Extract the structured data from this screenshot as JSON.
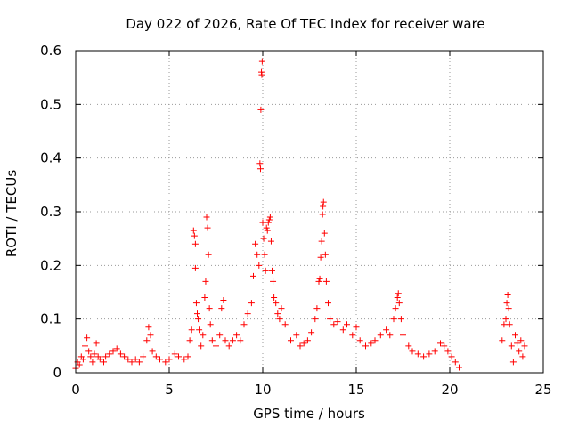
{
  "chart_data": {
    "type": "scatter",
    "title": "Day 022 of 2026, Rate Of TEC Index for receiver ware",
    "xlabel": "GPS time / hours",
    "ylabel": "ROTI / TECUs",
    "xlim": [
      0,
      25
    ],
    "ylim": [
      0,
      0.6
    ],
    "x_ticks": [
      "0",
      "5",
      "10",
      "15",
      "20",
      "25"
    ],
    "y_ticks": [
      "0",
      "0.1",
      "0.2",
      "0.3",
      "0.4",
      "0.5",
      "0.6"
    ],
    "grid": true,
    "marker": "plus",
    "series_color": "#ff0000",
    "series": [
      {
        "points": [
          [
            0.0,
            0.008
          ],
          [
            0.1,
            0.02
          ],
          [
            0.2,
            0.015
          ],
          [
            0.3,
            0.03
          ],
          [
            0.4,
            0.025
          ],
          [
            0.5,
            0.05
          ],
          [
            0.6,
            0.065
          ],
          [
            0.7,
            0.04
          ],
          [
            0.8,
            0.03
          ],
          [
            0.9,
            0.02
          ],
          [
            1.0,
            0.035
          ],
          [
            1.1,
            0.055
          ],
          [
            1.2,
            0.03
          ],
          [
            1.3,
            0.025
          ],
          [
            1.5,
            0.02
          ],
          [
            1.6,
            0.03
          ],
          [
            1.8,
            0.035
          ],
          [
            2.0,
            0.04
          ],
          [
            2.2,
            0.045
          ],
          [
            2.4,
            0.035
          ],
          [
            2.6,
            0.03
          ],
          [
            2.8,
            0.025
          ],
          [
            3.0,
            0.02
          ],
          [
            3.2,
            0.025
          ],
          [
            3.4,
            0.02
          ],
          [
            3.6,
            0.03
          ],
          [
            3.8,
            0.06
          ],
          [
            3.9,
            0.085
          ],
          [
            4.0,
            0.07
          ],
          [
            4.1,
            0.04
          ],
          [
            4.3,
            0.03
          ],
          [
            4.5,
            0.025
          ],
          [
            4.8,
            0.02
          ],
          [
            5.0,
            0.025
          ],
          [
            5.3,
            0.035
          ],
          [
            5.5,
            0.03
          ],
          [
            5.8,
            0.025
          ],
          [
            6.0,
            0.03
          ],
          [
            6.1,
            0.06
          ],
          [
            6.2,
            0.08
          ],
          [
            6.3,
            0.265
          ],
          [
            6.35,
            0.255
          ],
          [
            6.4,
            0.24
          ],
          [
            6.4,
            0.195
          ],
          [
            6.45,
            0.13
          ],
          [
            6.5,
            0.11
          ],
          [
            6.55,
            0.1
          ],
          [
            6.6,
            0.08
          ],
          [
            6.7,
            0.05
          ],
          [
            6.8,
            0.07
          ],
          [
            6.9,
            0.14
          ],
          [
            6.95,
            0.17
          ],
          [
            7.0,
            0.29
          ],
          [
            7.05,
            0.27
          ],
          [
            7.1,
            0.22
          ],
          [
            7.15,
            0.12
          ],
          [
            7.2,
            0.09
          ],
          [
            7.3,
            0.06
          ],
          [
            7.5,
            0.05
          ],
          [
            7.7,
            0.07
          ],
          [
            7.8,
            0.12
          ],
          [
            7.9,
            0.135
          ],
          [
            8.0,
            0.06
          ],
          [
            8.2,
            0.05
          ],
          [
            8.4,
            0.06
          ],
          [
            8.6,
            0.07
          ],
          [
            8.8,
            0.06
          ],
          [
            9.0,
            0.09
          ],
          [
            9.2,
            0.11
          ],
          [
            9.4,
            0.13
          ],
          [
            9.5,
            0.18
          ],
          [
            9.6,
            0.24
          ],
          [
            9.7,
            0.22
          ],
          [
            9.8,
            0.2
          ],
          [
            9.85,
            0.39
          ],
          [
            9.88,
            0.38
          ],
          [
            9.9,
            0.49
          ],
          [
            9.93,
            0.56
          ],
          [
            9.95,
            0.555
          ],
          [
            9.97,
            0.58
          ],
          [
            10.0,
            0.28
          ],
          [
            10.05,
            0.25
          ],
          [
            10.1,
            0.22
          ],
          [
            10.15,
            0.19
          ],
          [
            10.2,
            0.27
          ],
          [
            10.25,
            0.265
          ],
          [
            10.3,
            0.28
          ],
          [
            10.35,
            0.285
          ],
          [
            10.4,
            0.29
          ],
          [
            10.45,
            0.245
          ],
          [
            10.5,
            0.19
          ],
          [
            10.55,
            0.17
          ],
          [
            10.6,
            0.14
          ],
          [
            10.7,
            0.13
          ],
          [
            10.8,
            0.11
          ],
          [
            10.9,
            0.1
          ],
          [
            11.0,
            0.12
          ],
          [
            11.2,
            0.09
          ],
          [
            11.5,
            0.06
          ],
          [
            11.8,
            0.07
          ],
          [
            12.0,
            0.05
          ],
          [
            12.2,
            0.055
          ],
          [
            12.4,
            0.06
          ],
          [
            12.6,
            0.075
          ],
          [
            12.8,
            0.1
          ],
          [
            12.9,
            0.12
          ],
          [
            13.0,
            0.17
          ],
          [
            13.05,
            0.175
          ],
          [
            13.1,
            0.215
          ],
          [
            13.15,
            0.245
          ],
          [
            13.2,
            0.295
          ],
          [
            13.22,
            0.31
          ],
          [
            13.25,
            0.318
          ],
          [
            13.3,
            0.26
          ],
          [
            13.35,
            0.22
          ],
          [
            13.4,
            0.17
          ],
          [
            13.5,
            0.13
          ],
          [
            13.6,
            0.1
          ],
          [
            13.8,
            0.09
          ],
          [
            14.0,
            0.095
          ],
          [
            14.3,
            0.08
          ],
          [
            14.5,
            0.09
          ],
          [
            14.8,
            0.07
          ],
          [
            15.0,
            0.085
          ],
          [
            15.2,
            0.06
          ],
          [
            15.5,
            0.05
          ],
          [
            15.8,
            0.055
          ],
          [
            16.0,
            0.06
          ],
          [
            16.3,
            0.07
          ],
          [
            16.6,
            0.08
          ],
          [
            16.8,
            0.07
          ],
          [
            17.0,
            0.1
          ],
          [
            17.1,
            0.12
          ],
          [
            17.2,
            0.14
          ],
          [
            17.25,
            0.148
          ],
          [
            17.3,
            0.13
          ],
          [
            17.4,
            0.1
          ],
          [
            17.5,
            0.07
          ],
          [
            17.8,
            0.05
          ],
          [
            18.0,
            0.04
          ],
          [
            18.3,
            0.035
          ],
          [
            18.6,
            0.03
          ],
          [
            18.9,
            0.035
          ],
          [
            19.2,
            0.04
          ],
          [
            19.5,
            0.055
          ],
          [
            19.7,
            0.05
          ],
          [
            19.9,
            0.04
          ],
          [
            20.1,
            0.03
          ],
          [
            20.3,
            0.02
          ],
          [
            20.5,
            0.01
          ],
          [
            22.8,
            0.06
          ],
          [
            22.9,
            0.09
          ],
          [
            23.0,
            0.1
          ],
          [
            23.05,
            0.13
          ],
          [
            23.1,
            0.145
          ],
          [
            23.15,
            0.12
          ],
          [
            23.2,
            0.09
          ],
          [
            23.3,
            0.05
          ],
          [
            23.4,
            0.02
          ],
          [
            23.5,
            0.07
          ],
          [
            23.6,
            0.055
          ],
          [
            23.7,
            0.04
          ],
          [
            23.8,
            0.06
          ],
          [
            23.9,
            0.03
          ],
          [
            24.0,
            0.05
          ]
        ]
      }
    ]
  }
}
